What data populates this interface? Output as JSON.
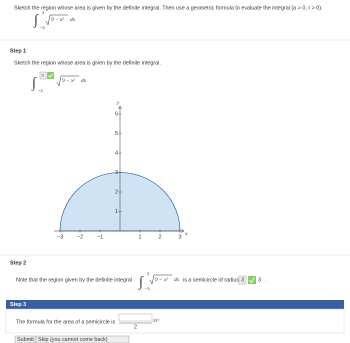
{
  "problem": {
    "text": "Sketch the region whose area is given by the definite integral. Then use a geometric formula to evaluate the integral (a > 0, r > 0).",
    "integral": {
      "lower": "−3",
      "upper": "3",
      "integrand": "9 − x²",
      "differential": "dx"
    }
  },
  "step1": {
    "label": "Step 1",
    "text": "Sketch the region whose area is given by the definite integral.",
    "integral": {
      "lower": "−3",
      "upper_answer": "3",
      "integrand": "9 − x²",
      "differential": "dx"
    },
    "graph": {
      "xlabel": "x",
      "ylabel": "y",
      "xticks": [
        {
          "value": -3,
          "label": "−3"
        },
        {
          "value": -2,
          "label": "−2"
        },
        {
          "value": -1,
          "label": "−1"
        },
        1,
        2,
        3
      ],
      "yticks": [
        1,
        2,
        3,
        4,
        5,
        6
      ]
    }
  },
  "step2": {
    "label": "Step 2",
    "text_before": "Note that the region given by the definite integral",
    "integral": {
      "lower": "−3",
      "upper": "3",
      "integrand": "9 − x²",
      "differential": "dx"
    },
    "text_after": "is a semicircle of radius",
    "answer": "3",
    "correct": "3",
    "end": "."
  },
  "step3": {
    "label": "Step 3",
    "text": "The formula for the area of a semicircle is",
    "denominator": "2",
    "suffix": "πr²"
  },
  "buttons": {
    "submit": "Submit",
    "skip": "Skip (you cannot come back)"
  }
}
